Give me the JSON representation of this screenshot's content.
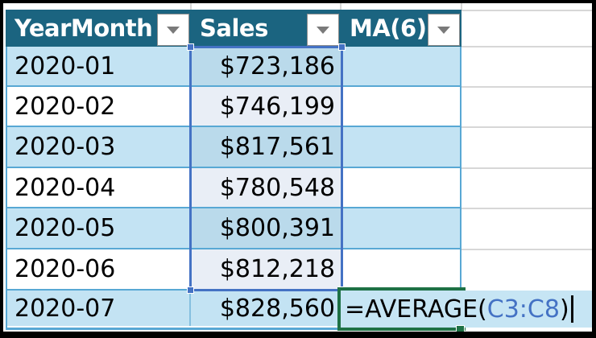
{
  "table": {
    "columns": [
      {
        "label": "YearMonth"
      },
      {
        "label": "Sales"
      },
      {
        "label": "MA(6)"
      }
    ],
    "rows": [
      {
        "ym": "2020-01",
        "sales": "$723,186",
        "ma": ""
      },
      {
        "ym": "2020-02",
        "sales": "$746,199",
        "ma": ""
      },
      {
        "ym": "2020-03",
        "sales": "$817,561",
        "ma": ""
      },
      {
        "ym": "2020-04",
        "sales": "$780,548",
        "ma": ""
      },
      {
        "ym": "2020-05",
        "sales": "$800,391",
        "ma": ""
      },
      {
        "ym": "2020-06",
        "sales": "$812,218",
        "ma": ""
      },
      {
        "ym": "2020-07",
        "sales": "$828,560",
        "ma": ""
      }
    ],
    "formula": {
      "prefix": "=AVERAGE(",
      "range_ref": "C3:C8",
      "suffix": ")"
    },
    "referenced_range": "C3:C8"
  },
  "icons": {
    "filter_buttons": "filter-dropdown-icon"
  },
  "colors": {
    "header_bg": "#1b6480",
    "header_text": "#ffffff",
    "band_blue": "#c3e3f3",
    "band_white": "#ffffff",
    "ref_tint_blue": "#badaeb",
    "ref_tint_white": "#e9eef6",
    "row_border": "#58a8d4",
    "reference_border": "#4472c4",
    "formula_ref_text": "#4472c4",
    "edit_border": "#1e7145",
    "edit_fill": "#c6e5f4",
    "gridline": "#d7d7d7"
  }
}
